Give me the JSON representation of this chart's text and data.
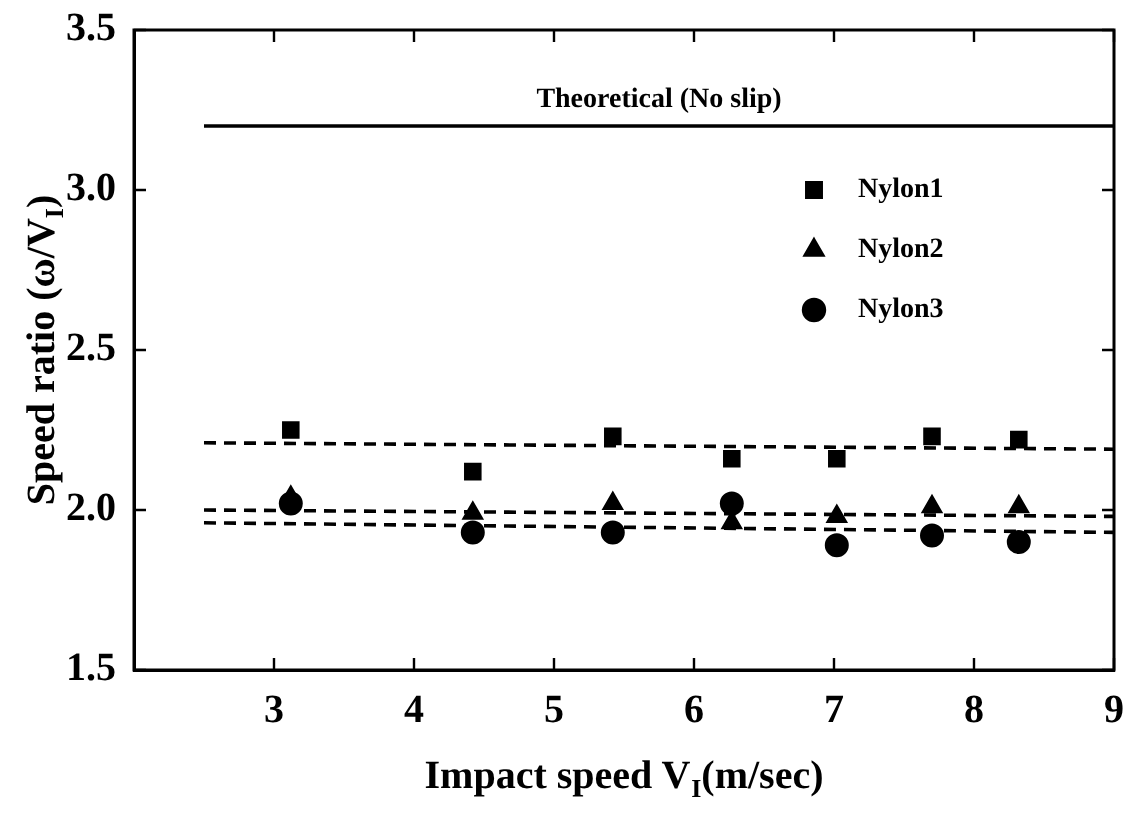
{
  "chart_data": {
    "type": "scatter",
    "xlabel": "Impact speed V$_{I}$(m/sec)",
    "ylabel": "Speed ratio (ω/V$_{I}$)",
    "xlim": [
      2,
      9
    ],
    "xticks": [
      3,
      4,
      5,
      6,
      7,
      8,
      9
    ],
    "ylim": [
      1.5,
      3.5
    ],
    "yticks": [
      {
        "value": 1.5,
        "label": "1.5"
      },
      {
        "value": 2,
        "label": "2.0"
      },
      {
        "value": 2.5,
        "label": "2.5"
      },
      {
        "value": 3,
        "label": "3.0"
      },
      {
        "value": 3.5,
        "label": "3.5"
      }
    ],
    "grid": false,
    "legend": "top right",
    "series": [
      {
        "name": "Nylon1",
        "color": "#000000",
        "marker": "square",
        "x": [
          3.12,
          4.42,
          5.42,
          6.27,
          7.02,
          7.7,
          8.32
        ],
        "values": [
          2.25,
          2.12,
          2.23,
          2.16,
          2.16,
          2.23,
          2.22
        ]
      },
      {
        "name": "Nylon2",
        "color": "#000000",
        "marker": "triangle",
        "x": [
          3.12,
          4.42,
          5.42,
          6.27,
          7.02,
          7.7,
          8.32
        ],
        "values": [
          2.04,
          1.99,
          2.02,
          1.96,
          1.98,
          2.01,
          2.01
        ]
      },
      {
        "name": "Nylon3",
        "color": "#000000",
        "marker": "circle",
        "x": [
          3.12,
          4.42,
          5.42,
          6.27,
          7.02,
          7.7,
          8.32
        ],
        "values": [
          2.02,
          1.93,
          1.93,
          2.02,
          1.89,
          1.92,
          1.9
        ]
      },
      {
        "name": "Theoretical (No slip)",
        "type": "line",
        "color": "#000000",
        "marker": "none",
        "line_style": "solid",
        "x": [
          2.5,
          9
        ],
        "values": [
          3.2,
          3.2
        ]
      },
      {
        "type": "line",
        "color": "#000000",
        "marker": "none",
        "line_style": "dashed",
        "x": [
          2.5,
          9
        ],
        "values": [
          2.21,
          2.19
        ]
      },
      {
        "type": "line",
        "color": "#000000",
        "marker": "none",
        "line_style": "dashed",
        "x": [
          2.5,
          9
        ],
        "values": [
          2.0,
          1.98
        ]
      },
      {
        "type": "line",
        "color": "#000000",
        "marker": "none",
        "line_style": "dashed",
        "x": [
          2.5,
          9
        ],
        "values": [
          1.96,
          1.93
        ]
      }
    ]
  }
}
